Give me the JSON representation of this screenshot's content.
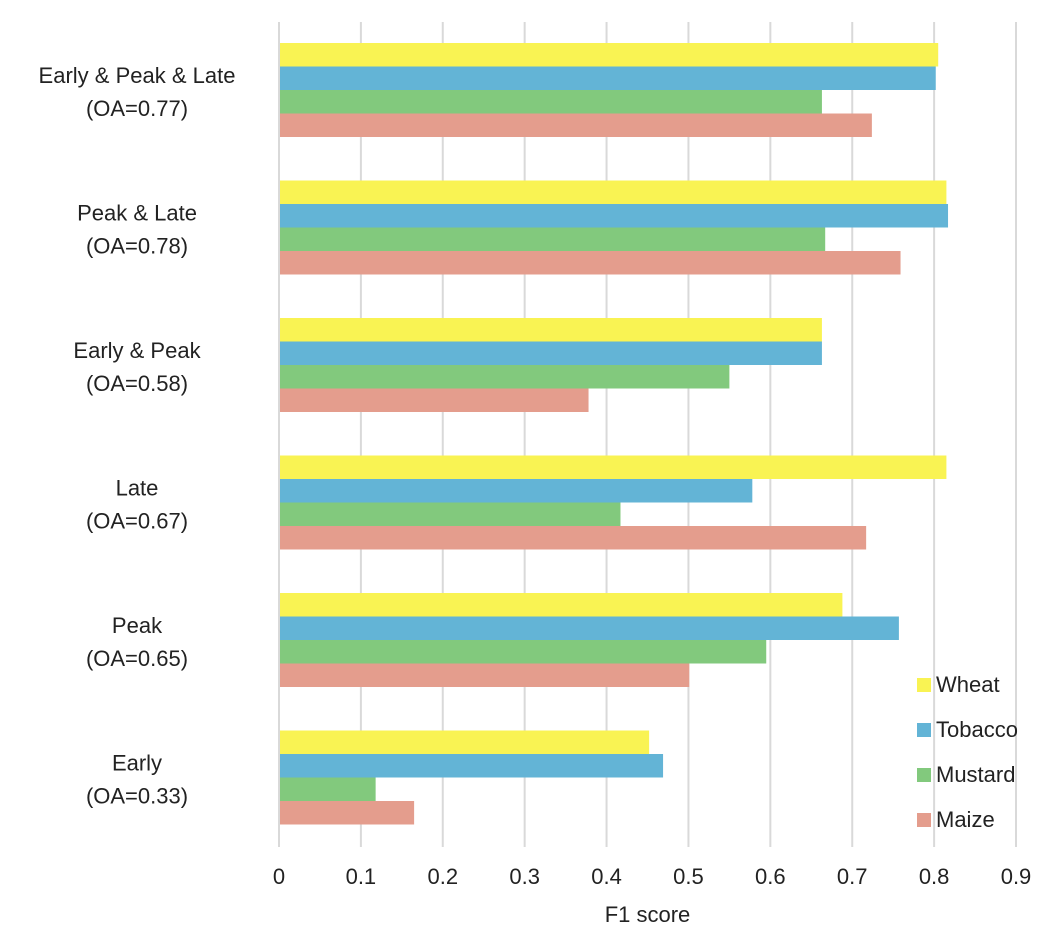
{
  "chart_data": {
    "type": "bar",
    "orientation": "horizontal",
    "title": "",
    "xlabel": "F1 score",
    "ylabel": "",
    "xlim": [
      0,
      0.9
    ],
    "xticks": [
      "0",
      "0.1",
      "0.2",
      "0.3",
      "0.4",
      "0.5",
      "0.6",
      "0.7",
      "0.8",
      "0.9"
    ],
    "grid": true,
    "legend_position": "bottom-right",
    "categories": [
      {
        "line1": "Early & Peak & Late",
        "line2": "(OA=0.77)"
      },
      {
        "line1": "Peak & Late",
        "line2": "(OA=0.78)"
      },
      {
        "line1": "Early & Peak",
        "line2": "(OA=0.58)"
      },
      {
        "line1": "Late",
        "line2": "(OA=0.67)"
      },
      {
        "line1": "Peak",
        "line2": "(OA=0.65)"
      },
      {
        "line1": "Early",
        "line2": "(OA=0.33)"
      }
    ],
    "series": [
      {
        "name": "Wheat",
        "color": "#f9f353",
        "values": [
          0.805,
          0.815,
          0.663,
          0.815,
          0.688,
          0.452
        ]
      },
      {
        "name": "Tobacco",
        "color": "#63b4d6",
        "values": [
          0.802,
          0.817,
          0.663,
          0.578,
          0.757,
          0.469
        ]
      },
      {
        "name": "Mustard",
        "color": "#82c97d",
        "values": [
          0.663,
          0.667,
          0.55,
          0.417,
          0.595,
          0.118
        ]
      },
      {
        "name": "Maize",
        "color": "#e49d8d",
        "values": [
          0.724,
          0.759,
          0.378,
          0.717,
          0.501,
          0.165
        ]
      }
    ]
  }
}
